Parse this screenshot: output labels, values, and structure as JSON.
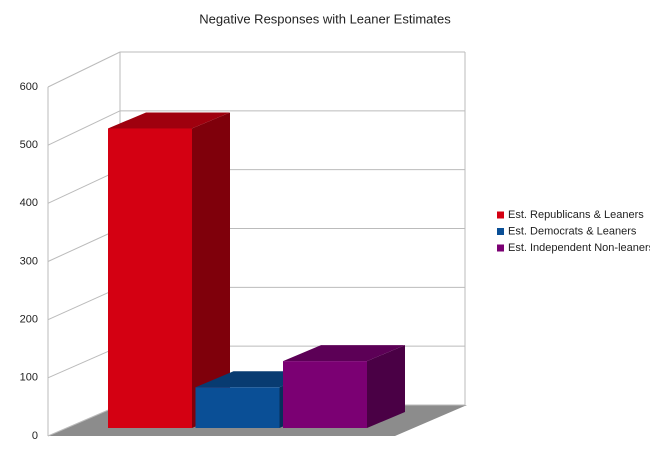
{
  "chart_data": {
    "type": "bar",
    "title": "Negative Responses with Leaner Estimates",
    "series": [
      {
        "name": "Est. Republicans & Leaners",
        "color": "#d40012",
        "values": [
          515
        ]
      },
      {
        "name": "Est. Democrats & Leaners",
        "color": "#0a4f96",
        "values": [
          70
        ]
      },
      {
        "name": "Est. Independent Non-leaners",
        "color": "#7b0073",
        "values": [
          115
        ]
      }
    ],
    "ylim": [
      0,
      600
    ],
    "yticks": [
      0,
      100,
      200,
      300,
      400,
      500,
      600
    ],
    "grid": true,
    "legend": "right"
  }
}
